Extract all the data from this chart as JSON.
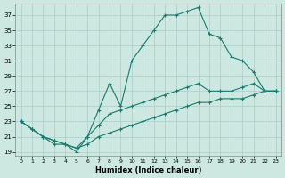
{
  "xlabel": "Humidex (Indice chaleur)",
  "bg_color": "#cce8e0",
  "grid_color": "#aacccc",
  "line_color": "#1a7a6e",
  "xlim": [
    -0.5,
    23.5
  ],
  "ylim": [
    18.5,
    38.5
  ],
  "yticks": [
    19,
    21,
    23,
    25,
    27,
    29,
    31,
    33,
    35,
    37
  ],
  "xticks": [
    0,
    1,
    2,
    3,
    4,
    5,
    6,
    7,
    8,
    9,
    10,
    11,
    12,
    13,
    14,
    15,
    16,
    17,
    18,
    19,
    20,
    21,
    22,
    23
  ],
  "curve1_x": [
    0,
    1,
    2,
    3,
    4,
    5,
    6,
    7,
    8,
    9,
    10,
    11,
    12,
    13,
    14,
    15,
    16,
    17,
    18,
    19,
    20,
    21,
    22,
    23
  ],
  "curve1_y": [
    23,
    22,
    21,
    20,
    20,
    19,
    21,
    24.5,
    28,
    25,
    31,
    33,
    35,
    37,
    37,
    37.5,
    38,
    34.5,
    34,
    31.5,
    31,
    29.5,
    27,
    27
  ],
  "curve2_x": [
    0,
    1,
    2,
    3,
    4,
    5,
    6,
    7,
    8,
    9,
    10,
    11,
    12,
    13,
    14,
    15,
    16,
    17,
    18,
    19,
    20,
    21,
    22,
    23
  ],
  "curve2_y": [
    23,
    22,
    21,
    20.5,
    20,
    19.5,
    21,
    22.5,
    24,
    24.5,
    25,
    25.5,
    26,
    26.5,
    27,
    27.5,
    28,
    27,
    27,
    27,
    27.5,
    28,
    27,
    27
  ],
  "curve3_x": [
    0,
    1,
    2,
    3,
    4,
    5,
    6,
    7,
    8,
    9,
    10,
    11,
    12,
    13,
    14,
    15,
    16,
    17,
    18,
    19,
    20,
    21,
    22,
    23
  ],
  "curve3_y": [
    23,
    22,
    21,
    20.5,
    20,
    19.5,
    20,
    21,
    21.5,
    22,
    22.5,
    23,
    23.5,
    24,
    24.5,
    25,
    25.5,
    25.5,
    26,
    26,
    26,
    26.5,
    27,
    27
  ]
}
